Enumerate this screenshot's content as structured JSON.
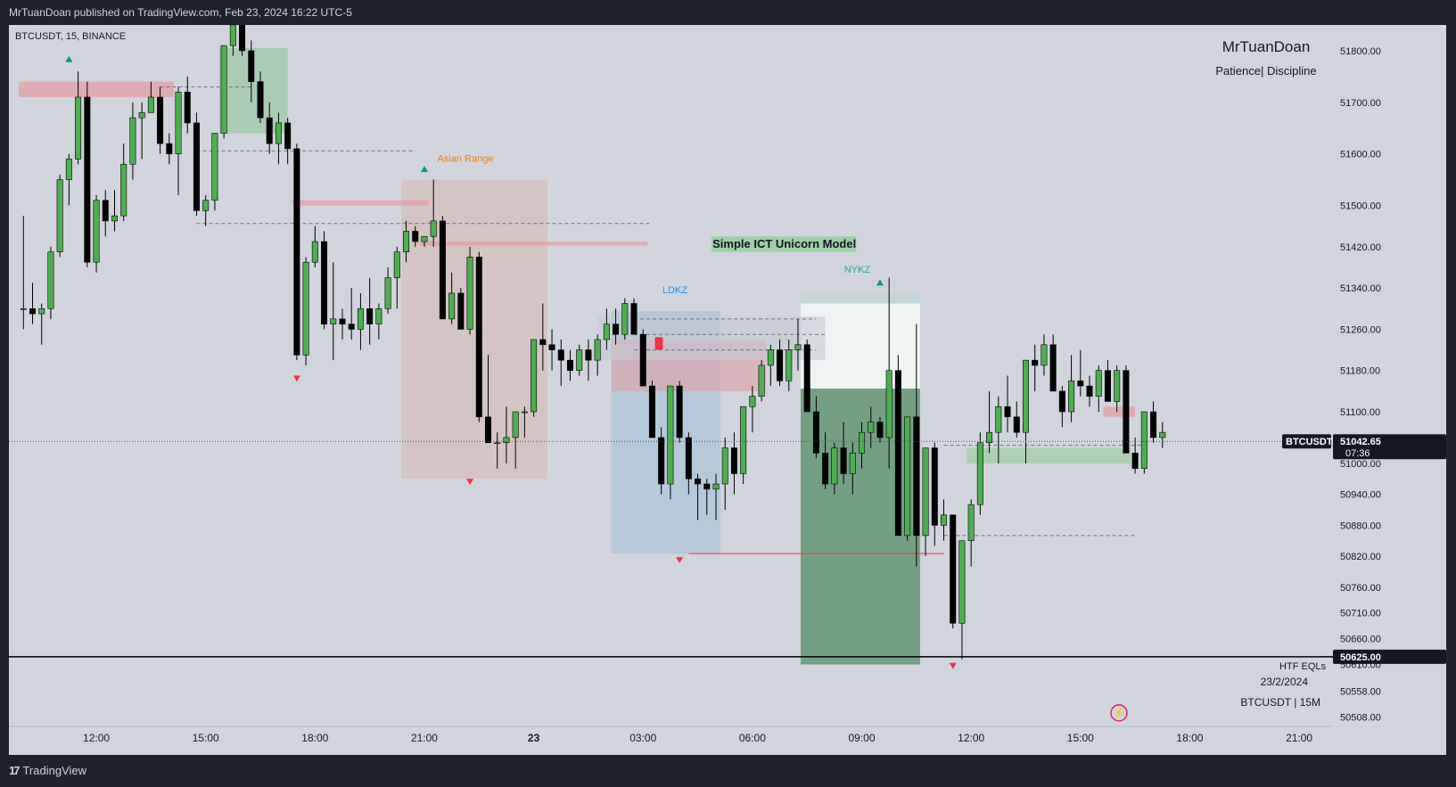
{
  "header": {
    "published": "MrTuanDoan published on TradingView.com, Feb 23, 2024 16:22 UTC-5"
  },
  "footer": {
    "brand": "TradingView",
    "logo_icon": "tradingview-logo-icon"
  },
  "chart_data": {
    "type": "candlestick",
    "symbol_label": "BTCUSDT, 15, BINANCE",
    "watermark_title": "MrTuanDoan",
    "watermark_subtitle": "Patience| Discipline",
    "ylim": [
      50490,
      51850
    ],
    "price_ticks": [
      "51800.00",
      "51700.00",
      "51600.00",
      "51500.00",
      "51420.00",
      "51340.00",
      "51260.00",
      "51180.00",
      "51100.00",
      "51000.00",
      "50940.00",
      "50880.00",
      "50820.00",
      "50760.00",
      "50710.00",
      "50660.00",
      "50610.00",
      "50558.00",
      "50508.00"
    ],
    "price_tick_values": [
      51800,
      51700,
      51600,
      51500,
      51420,
      51340,
      51260,
      51180,
      51100,
      51000,
      50940,
      50880,
      50820,
      50760,
      50710,
      50660,
      50610,
      50558,
      50508
    ],
    "time_ticks": [
      "12:00",
      "15:00",
      "18:00",
      "21:00",
      "23",
      "03:00",
      "06:00",
      "09:00",
      "12:00",
      "15:00",
      "18:00",
      "21:00"
    ],
    "time_tick_bars": [
      7,
      19,
      31,
      43,
      55,
      67,
      79,
      91,
      103,
      115,
      127,
      139
    ],
    "current_price": {
      "symbol": "BTCUSDT",
      "price": "51042.65",
      "value": 51042.65,
      "countdown": "07:36"
    },
    "horizontal_line": {
      "price": "50625.00",
      "value": 50625,
      "label": "HTF EQLs",
      "date": "23/2/2024",
      "caption": "BTCUSDT | 15M"
    },
    "annotations": {
      "asian_range": "Asian Range",
      "ldkz": "LDKZ",
      "nykz": "NYKZ",
      "model_title": "Simple ICT Unicorn Model"
    },
    "colors": {
      "up": "#4caf50",
      "down": "#000000",
      "bg": "#d1d4dc",
      "accent_red": "#f23645",
      "teal": "#089981"
    },
    "candles": [
      [
        -1,
        51300,
        51480,
        51260,
        51300
      ],
      [
        0,
        51300,
        51350,
        51270,
        51290
      ],
      [
        1,
        51290,
        51310,
        51230,
        51300
      ],
      [
        2,
        51300,
        51420,
        51280,
        51410
      ],
      [
        3,
        51410,
        51560,
        51400,
        51550
      ],
      [
        4,
        51550,
        51600,
        51500,
        51590
      ],
      [
        5,
        51590,
        51760,
        51580,
        51710
      ],
      [
        6,
        51710,
        51740,
        51380,
        51390
      ],
      [
        7,
        51390,
        51520,
        51370,
        51510
      ],
      [
        8,
        51510,
        51530,
        51440,
        51470
      ],
      [
        9,
        51470,
        51530,
        51450,
        51480
      ],
      [
        10,
        51480,
        51620,
        51470,
        51580
      ],
      [
        11,
        51580,
        51700,
        51550,
        51670
      ],
      [
        12,
        51670,
        51700,
        51590,
        51680
      ],
      [
        13,
        51680,
        51740,
        51680,
        51710
      ],
      [
        14,
        51710,
        51730,
        51600,
        51620
      ],
      [
        15,
        51620,
        51640,
        51580,
        51600
      ],
      [
        16,
        51600,
        51730,
        51520,
        51720
      ],
      [
        17,
        51720,
        51750,
        51640,
        51660
      ],
      [
        18,
        51660,
        51680,
        51480,
        51490
      ],
      [
        19,
        51490,
        51520,
        51460,
        51510
      ],
      [
        20,
        51510,
        51640,
        51490,
        51640
      ],
      [
        21,
        51640,
        51810,
        51630,
        51810
      ],
      [
        22,
        51810,
        51890,
        51790,
        51850
      ],
      [
        23,
        51850,
        51900,
        51790,
        51800
      ],
      [
        24,
        51800,
        51820,
        51700,
        51740
      ],
      [
        25,
        51740,
        51760,
        51660,
        51670
      ],
      [
        26,
        51670,
        51700,
        51600,
        51620
      ],
      [
        27,
        51620,
        51680,
        51580,
        51660
      ],
      [
        28,
        51660,
        51670,
        51580,
        51610
      ],
      [
        29,
        51610,
        51620,
        51200,
        51210
      ],
      [
        30,
        51210,
        51400,
        51190,
        51390
      ],
      [
        31,
        51390,
        51460,
        51380,
        51430
      ],
      [
        32,
        51430,
        51450,
        51260,
        51270
      ],
      [
        33,
        51270,
        51390,
        51200,
        51280
      ],
      [
        34,
        51280,
        51300,
        51240,
        51270
      ],
      [
        35,
        51270,
        51340,
        51240,
        51260
      ],
      [
        36,
        51260,
        51330,
        51220,
        51300
      ],
      [
        37,
        51300,
        51360,
        51230,
        51270
      ],
      [
        38,
        51270,
        51310,
        51240,
        51300
      ],
      [
        39,
        51300,
        51380,
        51290,
        51360
      ],
      [
        40,
        51360,
        51420,
        51300,
        51410
      ],
      [
        41,
        51410,
        51470,
        51390,
        51450
      ],
      [
        42,
        51450,
        51460,
        51420,
        51430
      ],
      [
        43,
        51430,
        51440,
        51420,
        51440
      ],
      [
        44,
        51440,
        51550,
        51420,
        51470
      ],
      [
        45,
        51470,
        51480,
        51280,
        51280
      ],
      [
        46,
        51280,
        51370,
        51270,
        51330
      ],
      [
        47,
        51330,
        51340,
        51260,
        51260
      ],
      [
        48,
        51260,
        51420,
        51250,
        51400
      ],
      [
        49,
        51400,
        51410,
        51080,
        51090
      ],
      [
        50,
        51090,
        51210,
        51040,
        51040
      ],
      [
        51,
        51040,
        51060,
        50990,
        51040
      ],
      [
        52,
        51040,
        51110,
        51000,
        51050
      ],
      [
        53,
        51050,
        51100,
        50990,
        51100
      ],
      [
        54,
        51100,
        51110,
        51050,
        51100
      ],
      [
        55,
        51100,
        51240,
        51090,
        51240
      ],
      [
        56,
        51240,
        51310,
        51180,
        51230
      ],
      [
        57,
        51230,
        51260,
        51180,
        51220
      ],
      [
        58,
        51220,
        51240,
        51150,
        51200
      ],
      [
        59,
        51200,
        51220,
        51160,
        51180
      ],
      [
        60,
        51180,
        51230,
        51170,
        51220
      ],
      [
        61,
        51220,
        51240,
        51160,
        51200
      ],
      [
        62,
        51200,
        51250,
        51170,
        51240
      ],
      [
        63,
        51240,
        51300,
        51220,
        51270
      ],
      [
        64,
        51270,
        51300,
        51230,
        51250
      ],
      [
        65,
        51250,
        51320,
        51240,
        51310
      ],
      [
        66,
        51310,
        51320,
        51260,
        51250
      ],
      [
        67,
        51250,
        51260,
        51160,
        51150
      ],
      [
        68,
        51150,
        51160,
        51050,
        51050
      ],
      [
        69,
        51050,
        51070,
        50940,
        50960
      ],
      [
        70,
        50960,
        51140,
        50930,
        51150
      ],
      [
        71,
        51150,
        51160,
        51040,
        51050
      ],
      [
        72,
        51050,
        51060,
        50940,
        50970
      ],
      [
        73,
        50970,
        50980,
        50890,
        50960
      ],
      [
        74,
        50960,
        50970,
        50900,
        50950
      ],
      [
        75,
        50950,
        50980,
        50890,
        50960
      ],
      [
        76,
        50960,
        51050,
        50910,
        51030
      ],
      [
        77,
        51030,
        51060,
        50940,
        50980
      ],
      [
        78,
        50980,
        51110,
        50960,
        51110
      ],
      [
        79,
        51110,
        51150,
        51060,
        51130
      ],
      [
        80,
        51130,
        51200,
        51120,
        51190
      ],
      [
        81,
        51190,
        51230,
        51150,
        51220
      ],
      [
        82,
        51220,
        51240,
        51150,
        51160
      ],
      [
        83,
        51160,
        51240,
        51140,
        51220
      ],
      [
        84,
        51220,
        51280,
        51180,
        51230
      ],
      [
        85,
        51230,
        51240,
        51100,
        51100
      ],
      [
        86,
        51100,
        51130,
        51010,
        51020
      ],
      [
        87,
        51020,
        51060,
        50950,
        50960
      ],
      [
        88,
        50960,
        51040,
        50940,
        51030
      ],
      [
        89,
        51030,
        51080,
        50960,
        50980
      ],
      [
        90,
        50980,
        51040,
        50940,
        51020
      ],
      [
        91,
        51020,
        51080,
        50990,
        51060
      ],
      [
        92,
        51060,
        51110,
        51030,
        51080
      ],
      [
        93,
        51080,
        51090,
        51040,
        51050
      ],
      [
        94,
        51050,
        51360,
        50990,
        51180
      ],
      [
        95,
        51180,
        51210,
        50860,
        50860
      ],
      [
        96,
        50860,
        51080,
        50850,
        51090
      ],
      [
        97,
        51090,
        51270,
        50800,
        50860
      ],
      [
        98,
        50860,
        51030,
        50820,
        51030
      ],
      [
        99,
        51030,
        51040,
        50840,
        50880
      ],
      [
        100,
        50880,
        50930,
        50850,
        50900
      ],
      [
        101,
        50900,
        50900,
        50680,
        50690
      ],
      [
        102,
        50690,
        50840,
        50620,
        50850
      ],
      [
        103,
        50850,
        50930,
        50800,
        50920
      ],
      [
        104,
        50920,
        51060,
        50900,
        51040
      ],
      [
        105,
        51040,
        51140,
        51020,
        51060
      ],
      [
        106,
        51060,
        51130,
        51000,
        51110
      ],
      [
        107,
        51110,
        51170,
        51060,
        51090
      ],
      [
        108,
        51090,
        51120,
        51050,
        51060
      ],
      [
        109,
        51060,
        51200,
        51000,
        51200
      ],
      [
        110,
        51200,
        51230,
        51140,
        51190
      ],
      [
        111,
        51190,
        51250,
        51170,
        51230
      ],
      [
        112,
        51230,
        51250,
        51140,
        51140
      ],
      [
        113,
        51140,
        51150,
        51070,
        51100
      ],
      [
        114,
        51100,
        51210,
        51080,
        51160
      ],
      [
        115,
        51160,
        51220,
        51130,
        51150
      ],
      [
        116,
        51150,
        51170,
        51110,
        51130
      ],
      [
        117,
        51130,
        51190,
        51100,
        51180
      ],
      [
        118,
        51180,
        51200,
        51120,
        51120
      ],
      [
        119,
        51120,
        51190,
        51100,
        51180
      ],
      [
        120,
        51180,
        51190,
        51030,
        51020
      ],
      [
        121,
        51020,
        51050,
        50980,
        50990
      ],
      [
        122,
        50990,
        51100,
        50980,
        51100
      ],
      [
        123,
        51100,
        51120,
        51040,
        51050
      ],
      [
        124,
        51050,
        51080,
        51030,
        51060
      ]
    ]
  }
}
